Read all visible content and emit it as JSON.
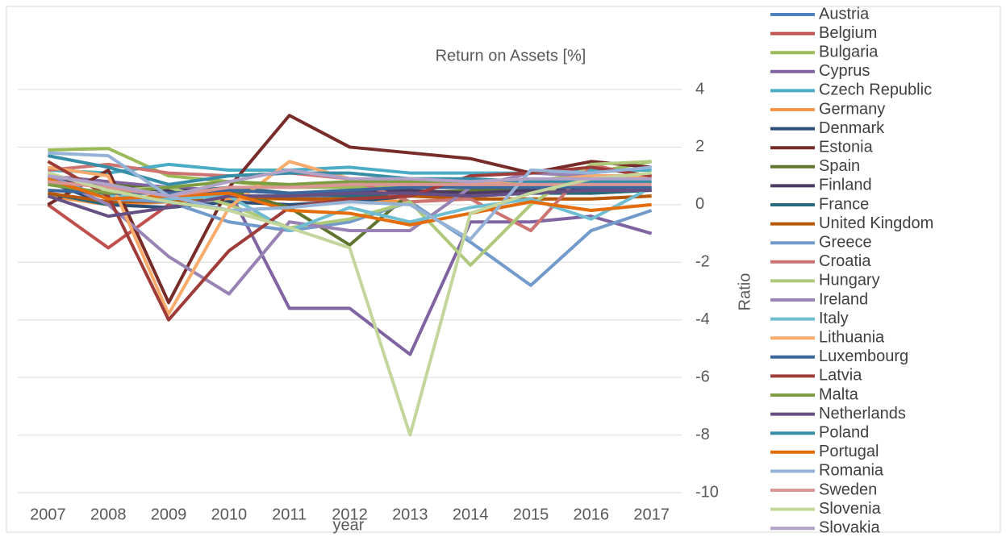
{
  "chart_data": {
    "type": "line",
    "title": "Return on Assets [%]",
    "x_label": "year",
    "y_label": "Ratio",
    "categories": [
      "2007",
      "2008",
      "2009",
      "2010",
      "2011",
      "2012",
      "2013",
      "2014",
      "2015",
      "2016",
      "2017"
    ],
    "ylim": [
      -10,
      4
    ],
    "yticks": [
      -10,
      -8,
      -6,
      -4,
      -2,
      0,
      2,
      4
    ],
    "grid": true,
    "legend": "right",
    "series": [
      {
        "name": "Austria",
        "color": "#4F81BD",
        "values": [
          0.4,
          0.1,
          0.2,
          0.3,
          0.3,
          0.3,
          0.4,
          0.3,
          0.4,
          0.5,
          0.6
        ]
      },
      {
        "name": "Belgium",
        "color": "#C0504D",
        "values": [
          0.0,
          -1.5,
          0.0,
          0.3,
          0.2,
          0.1,
          0.3,
          0.5,
          0.4,
          0.6,
          0.6
        ]
      },
      {
        "name": "Bulgaria",
        "color": "#9BBB59",
        "values": [
          1.9,
          1.95,
          1.0,
          0.8,
          0.6,
          0.6,
          0.6,
          0.8,
          0.8,
          1.1,
          1.5
        ]
      },
      {
        "name": "Cyprus",
        "color": "#8064A2",
        "values": [
          1.0,
          0.8,
          0.6,
          0.5,
          -3.6,
          -3.6,
          -5.2,
          -0.6,
          -0.6,
          -0.4,
          -1.0
        ]
      },
      {
        "name": "Czech Republic",
        "color": "#4BACC6",
        "values": [
          1.2,
          1.1,
          1.4,
          1.2,
          1.2,
          1.3,
          1.1,
          1.1,
          1.1,
          1.2,
          1.2
        ]
      },
      {
        "name": "Germany",
        "color": "#F79646",
        "values": [
          0.3,
          0.0,
          0.1,
          0.2,
          0.2,
          0.2,
          0.1,
          0.2,
          0.2,
          0.2,
          0.3
        ]
      },
      {
        "name": "Denmark",
        "color": "#2C4D75",
        "values": [
          0.8,
          0.0,
          -0.1,
          0.1,
          0.0,
          0.1,
          0.3,
          0.5,
          0.7,
          0.7,
          0.8
        ]
      },
      {
        "name": "Estonia",
        "color": "#772C2A",
        "values": [
          0.0,
          1.2,
          -3.4,
          0.6,
          3.1,
          2.0,
          1.8,
          1.6,
          1.1,
          1.5,
          1.3
        ]
      },
      {
        "name": "Spain",
        "color": "#5F7530",
        "values": [
          1.0,
          0.7,
          0.5,
          0.5,
          -0.1,
          -1.4,
          0.4,
          0.5,
          0.5,
          0.4,
          0.5
        ]
      },
      {
        "name": "Finland",
        "color": "#4D3B62",
        "values": [
          0.9,
          0.6,
          0.5,
          0.5,
          0.4,
          0.4,
          0.5,
          0.4,
          0.5,
          0.5,
          0.5
        ]
      },
      {
        "name": "France",
        "color": "#276A7C",
        "values": [
          0.4,
          0.0,
          0.4,
          0.6,
          0.4,
          0.3,
          0.4,
          0.3,
          0.4,
          0.4,
          0.5
        ]
      },
      {
        "name": "United Kingdom",
        "color": "#B65708",
        "values": [
          0.4,
          0.1,
          0.1,
          0.3,
          0.2,
          0.2,
          0.3,
          0.2,
          0.2,
          0.2,
          0.3
        ]
      },
      {
        "name": "Greece",
        "color": "#729ACA",
        "values": [
          1.0,
          0.2,
          0.1,
          -0.6,
          -0.9,
          -0.6,
          0.1,
          -1.3,
          -2.8,
          -0.9,
          -0.2
        ]
      },
      {
        "name": "Croatia",
        "color": "#CD7371",
        "values": [
          1.2,
          1.4,
          1.1,
          1.0,
          1.1,
          0.9,
          0.1,
          0.2,
          -0.9,
          1.4,
          0.9
        ]
      },
      {
        "name": "Hungary",
        "color": "#AFC97A",
        "values": [
          1.1,
          0.5,
          0.6,
          0.0,
          -0.8,
          -0.5,
          0.1,
          -2.1,
          0.0,
          1.4,
          1.5
        ]
      },
      {
        "name": "Ireland",
        "color": "#9983B5",
        "values": [
          1.0,
          0.0,
          -1.8,
          -3.1,
          -0.6,
          -0.9,
          -0.9,
          0.6,
          1.1,
          1.0,
          1.0
        ]
      },
      {
        "name": "Italy",
        "color": "#6FBDD1",
        "values": [
          0.8,
          0.3,
          0.2,
          0.3,
          -0.9,
          -0.1,
          -0.6,
          -0.1,
          0.2,
          -0.5,
          0.6
        ]
      },
      {
        "name": "Lithuania",
        "color": "#F9AB6B",
        "values": [
          1.3,
          1.0,
          -3.8,
          -0.1,
          1.5,
          0.9,
          0.9,
          0.8,
          0.8,
          1.0,
          1.0
        ]
      },
      {
        "name": "Luxembourg",
        "color": "#3A679C",
        "values": [
          0.5,
          0.4,
          0.4,
          0.5,
          0.4,
          0.5,
          0.6,
          0.6,
          0.6,
          0.6,
          0.6
        ]
      },
      {
        "name": "Latvia",
        "color": "#9F3B38",
        "values": [
          1.5,
          0.3,
          -4.0,
          -1.6,
          -0.1,
          0.2,
          0.3,
          1.0,
          1.1,
          1.3,
          1.0
        ]
      },
      {
        "name": "Malta",
        "color": "#7E9D40",
        "values": [
          0.7,
          0.4,
          0.6,
          0.8,
          0.7,
          0.8,
          0.8,
          0.7,
          0.7,
          0.8,
          0.8
        ]
      },
      {
        "name": "Netherlands",
        "color": "#664F82",
        "values": [
          0.3,
          -0.4,
          -0.1,
          0.3,
          0.3,
          0.4,
          0.4,
          0.3,
          0.4,
          0.5,
          0.5
        ]
      },
      {
        "name": "Poland",
        "color": "#358EA6",
        "values": [
          1.7,
          1.3,
          0.7,
          1.0,
          1.1,
          1.1,
          0.9,
          0.9,
          0.8,
          0.8,
          0.8
        ]
      },
      {
        "name": "Portugal",
        "color": "#E46C0A",
        "values": [
          0.9,
          0.2,
          0.3,
          0.4,
          -0.2,
          -0.3,
          -0.7,
          -0.3,
          0.1,
          -0.2,
          0.0
        ]
      },
      {
        "name": "Romania",
        "color": "#95B3D7",
        "values": [
          1.8,
          1.7,
          0.3,
          -0.2,
          -0.1,
          0.1,
          0.0,
          -1.2,
          1.2,
          1.1,
          1.3
        ]
      },
      {
        "name": "Sweden",
        "color": "#D99694",
        "values": [
          0.8,
          0.6,
          0.3,
          0.6,
          0.6,
          0.7,
          0.7,
          0.7,
          0.7,
          0.7,
          0.7
        ]
      },
      {
        "name": "Slovenia",
        "color": "#C3D69B",
        "values": [
          1.1,
          0.5,
          0.1,
          -0.2,
          -0.8,
          -1.5,
          -8.0,
          -0.3,
          0.4,
          0.9,
          1.1
        ]
      },
      {
        "name": "Slovakia",
        "color": "#B3A2C7",
        "values": [
          1.0,
          0.7,
          0.3,
          0.8,
          1.2,
          0.9,
          0.9,
          0.8,
          0.9,
          0.9,
          0.9
        ]
      }
    ]
  }
}
